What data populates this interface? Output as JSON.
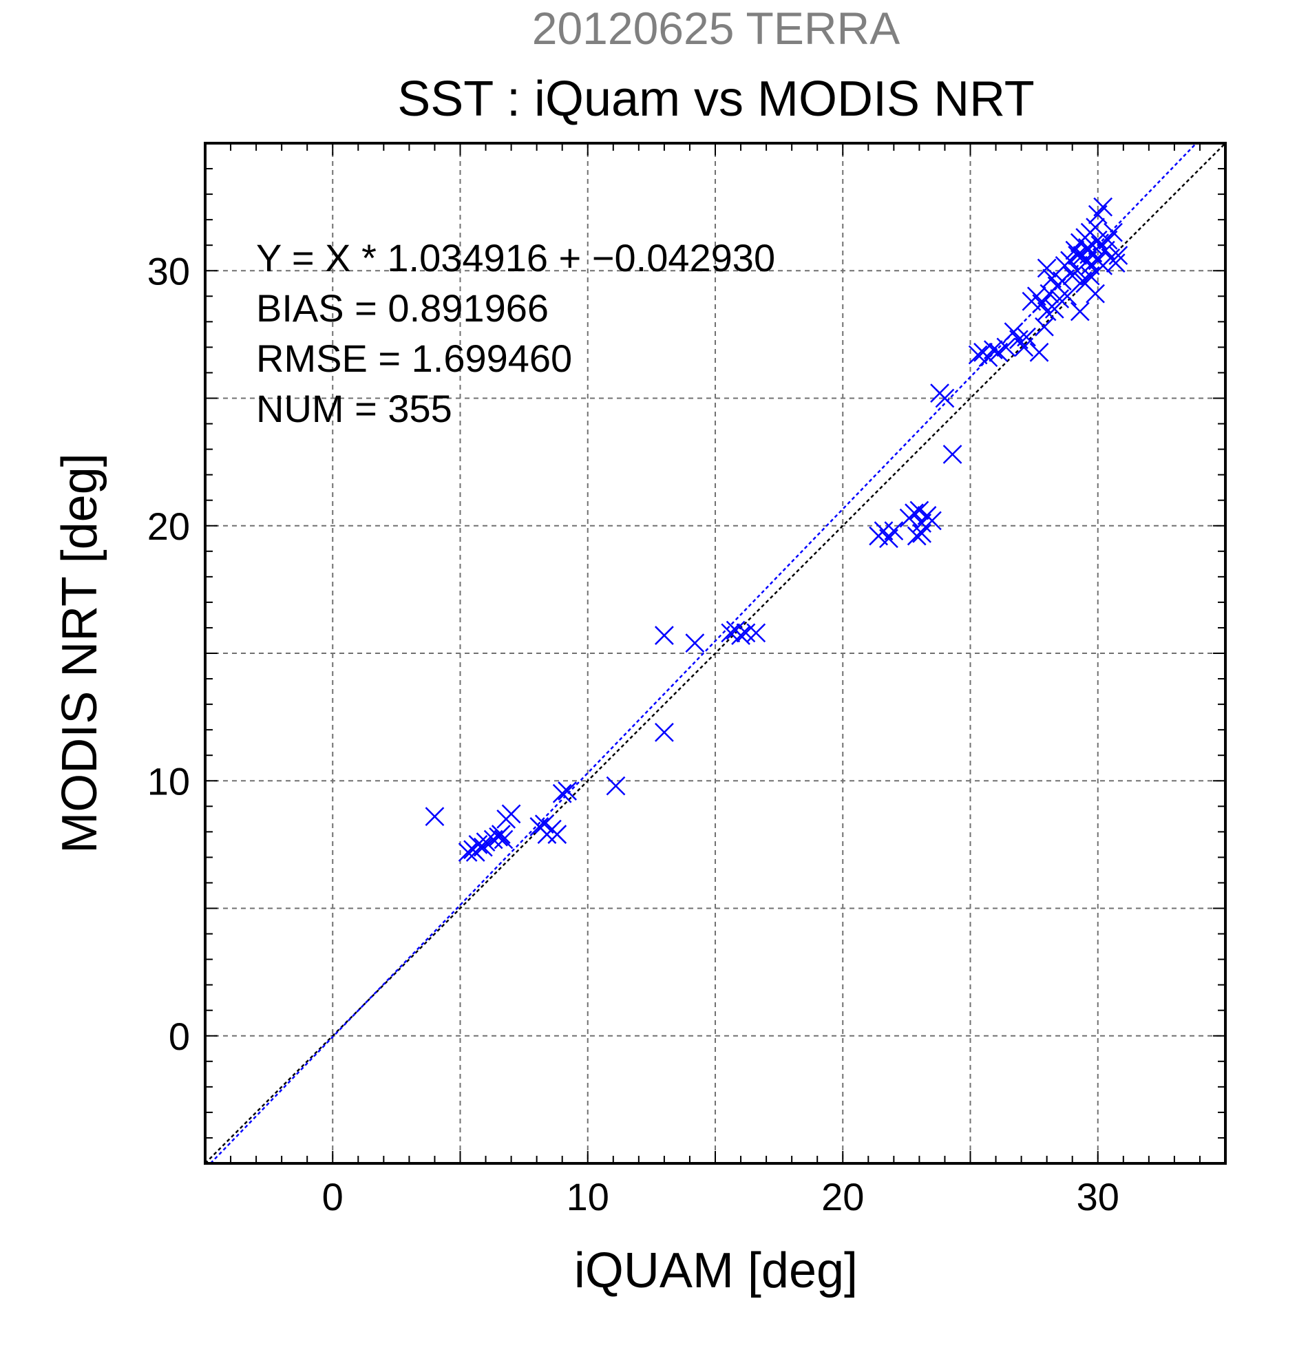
{
  "chart_data": {
    "type": "scatter",
    "title": "20120625 TERRA",
    "subtitle": "SST : iQuam vs MODIS NRT",
    "xlabel": "iQUAM [deg]",
    "ylabel": "MODIS NRT [deg]",
    "xlim": [
      -5,
      35
    ],
    "ylim": [
      -5,
      35
    ],
    "xticks": [
      0,
      10,
      20,
      30
    ],
    "yticks": [
      0,
      10,
      20,
      30
    ],
    "grid": true,
    "colors": {
      "points": "#0000ff",
      "fit_line": "#0000ff",
      "identity_line": "#000000",
      "title": "#808080"
    },
    "stats": {
      "equation": "Y = X * 1.034916 + −0.042930",
      "bias": "BIAS = 0.891966",
      "rmse": "RMSE = 1.699460",
      "num": "NUM = 355"
    },
    "regression": {
      "slope": 1.034916,
      "intercept": -0.04293
    },
    "series": [
      {
        "marker": "x",
        "points": [
          [
            4.0,
            8.6
          ],
          [
            5.3,
            7.2
          ],
          [
            5.5,
            7.3
          ],
          [
            5.7,
            7.5
          ],
          [
            5.6,
            7.2
          ],
          [
            5.9,
            7.4
          ],
          [
            6.0,
            7.6
          ],
          [
            6.3,
            7.7
          ],
          [
            6.5,
            7.8
          ],
          [
            6.7,
            7.7
          ],
          [
            6.8,
            8.5
          ],
          [
            7.0,
            8.7
          ],
          [
            6.6,
            7.9
          ],
          [
            8.1,
            8.2
          ],
          [
            8.3,
            8.3
          ],
          [
            8.4,
            7.9
          ],
          [
            8.6,
            8.1
          ],
          [
            8.8,
            7.9
          ],
          [
            9.0,
            9.5
          ],
          [
            9.2,
            9.6
          ],
          [
            11.1,
            9.8
          ],
          [
            13.0,
            15.7
          ],
          [
            13.0,
            11.9
          ],
          [
            14.2,
            15.4
          ],
          [
            15.6,
            15.8
          ],
          [
            15.8,
            15.9
          ],
          [
            16.0,
            15.7
          ],
          [
            16.2,
            15.8
          ],
          [
            16.6,
            15.8
          ],
          [
            21.4,
            19.6
          ],
          [
            21.6,
            19.8
          ],
          [
            21.8,
            19.5
          ],
          [
            22.0,
            19.8
          ],
          [
            22.6,
            20.3
          ],
          [
            22.8,
            20.5
          ],
          [
            23.0,
            20.6
          ],
          [
            22.9,
            19.6
          ],
          [
            23.1,
            20.1
          ],
          [
            23.3,
            20.4
          ],
          [
            23.5,
            20.2
          ],
          [
            23.1,
            19.7
          ],
          [
            23.8,
            25.2
          ],
          [
            24.0,
            25.0
          ],
          [
            24.3,
            22.8
          ],
          [
            25.3,
            26.7
          ],
          [
            25.5,
            26.8
          ],
          [
            25.7,
            26.6
          ],
          [
            25.9,
            26.9
          ],
          [
            26.1,
            26.8
          ],
          [
            26.4,
            27.0
          ],
          [
            26.7,
            27.6
          ],
          [
            26.9,
            27.3
          ],
          [
            27.1,
            27.0
          ],
          [
            27.2,
            27.4
          ],
          [
            27.4,
            28.8
          ],
          [
            27.6,
            29.0
          ],
          [
            27.8,
            28.7
          ],
          [
            27.7,
            26.8
          ],
          [
            27.9,
            27.8
          ],
          [
            28.0,
            28.4
          ],
          [
            28.1,
            29.1
          ],
          [
            28.2,
            29.7
          ],
          [
            28.3,
            28.5
          ],
          [
            28.0,
            30.1
          ],
          [
            28.4,
            29.4
          ],
          [
            28.5,
            28.9
          ],
          [
            28.6,
            29.6
          ],
          [
            28.7,
            30.2
          ],
          [
            28.8,
            29.0
          ],
          [
            28.9,
            30.4
          ],
          [
            29.0,
            29.8
          ],
          [
            29.1,
            30.8
          ],
          [
            29.2,
            30.0
          ],
          [
            29.3,
            31.1
          ],
          [
            29.3,
            28.4
          ],
          [
            29.4,
            30.6
          ],
          [
            29.5,
            31.3
          ],
          [
            29.5,
            29.5
          ],
          [
            29.6,
            30.9
          ],
          [
            29.7,
            31.5
          ],
          [
            29.7,
            30.2
          ],
          [
            29.8,
            30.7
          ],
          [
            29.9,
            31.7
          ],
          [
            29.9,
            29.1
          ],
          [
            30.0,
            30.4
          ],
          [
            30.0,
            32.2
          ],
          [
            30.1,
            31.0
          ],
          [
            30.2,
            30.2
          ],
          [
            30.2,
            32.5
          ],
          [
            30.3,
            30.8
          ],
          [
            30.4,
            31.2
          ],
          [
            30.5,
            30.5
          ],
          [
            30.6,
            31.5
          ],
          [
            30.7,
            30.3
          ],
          [
            30.8,
            30.6
          ],
          [
            29.4,
            29.6
          ],
          [
            29.6,
            30.4
          ],
          [
            29.8,
            31.0
          ],
          [
            30.0,
            31.2
          ],
          [
            29.2,
            30.6
          ],
          [
            29.7,
            29.8
          ]
        ]
      }
    ]
  }
}
